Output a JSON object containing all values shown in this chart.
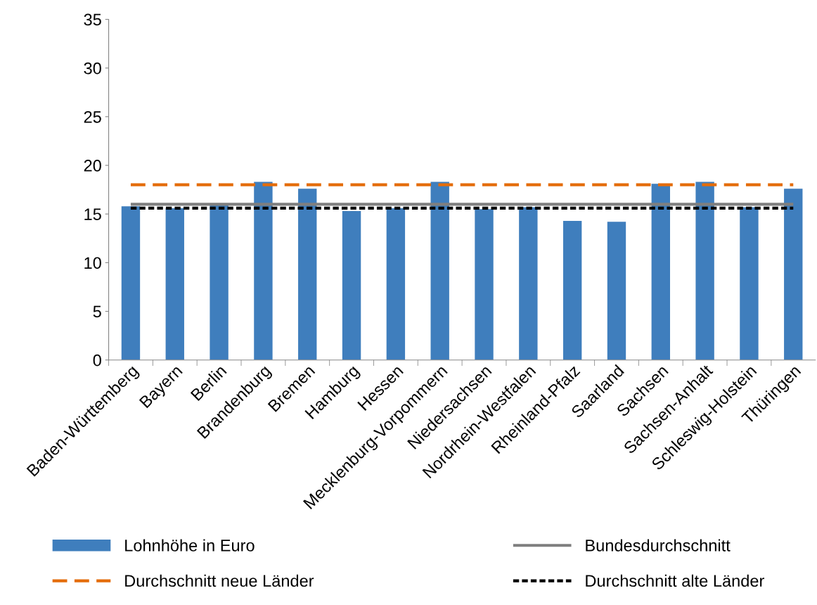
{
  "chart_data": {
    "type": "bar",
    "categories": [
      "Baden-Württemberg",
      "Bayern",
      "Berlin",
      "Brandenburg",
      "Bremen",
      "Hamburg",
      "Hessen",
      "Mecklenburg-Vorpommern",
      "Niedersachsen",
      "Nordrhein-Westfalen",
      "Rheinland-Pfalz",
      "Saarland",
      "Sachsen",
      "Sachsen-Anhalt",
      "Schleswig-Holstein",
      "Thüringen"
    ],
    "series": [
      {
        "name": "Lohnhöhe in Euro",
        "color": "#3f7ebd",
        "values": [
          15.8,
          15.6,
          16.0,
          18.3,
          17.6,
          15.3,
          15.6,
          18.3,
          15.5,
          15.7,
          14.3,
          14.2,
          18.1,
          18.3,
          15.7,
          17.6
        ]
      },
      {
        "name": "Bundesdurchschnitt",
        "type": "line",
        "color": "#7f7f7f",
        "line_style": "solid",
        "values": [
          16.0,
          16.0,
          16.0,
          16.0,
          16.0,
          16.0,
          16.0,
          16.0,
          16.0,
          16.0,
          16.0,
          16.0,
          16.0,
          16.0,
          16.0,
          16.0
        ]
      },
      {
        "name": "Durchschnitt neue Länder",
        "type": "line",
        "color": "#e46c0a",
        "line_style": "dashed",
        "values": [
          18.0,
          18.0,
          18.0,
          18.0,
          18.0,
          18.0,
          18.0,
          18.0,
          18.0,
          18.0,
          18.0,
          18.0,
          18.0,
          18.0,
          18.0,
          18.0
        ]
      },
      {
        "name": "Durchschnitt alte Länder",
        "type": "line",
        "color": "#000000",
        "line_style": "dotted",
        "values": [
          15.6,
          15.6,
          15.6,
          15.6,
          15.6,
          15.6,
          15.6,
          15.6,
          15.6,
          15.6,
          15.6,
          15.6,
          15.6,
          15.6,
          15.6,
          15.6
        ]
      }
    ],
    "ylim": [
      0,
      35
    ],
    "yticks": [
      0,
      5,
      10,
      15,
      20,
      25,
      30,
      35
    ],
    "grid": false,
    "legend": "bottom"
  }
}
